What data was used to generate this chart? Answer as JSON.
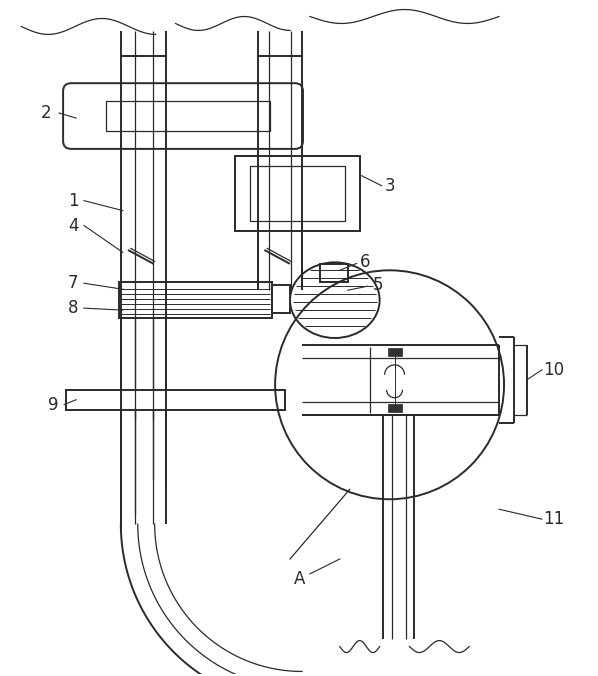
{
  "bg_color": "#ffffff",
  "lc": "#2a2a2a",
  "lw": 1.4,
  "tlw": 0.9
}
